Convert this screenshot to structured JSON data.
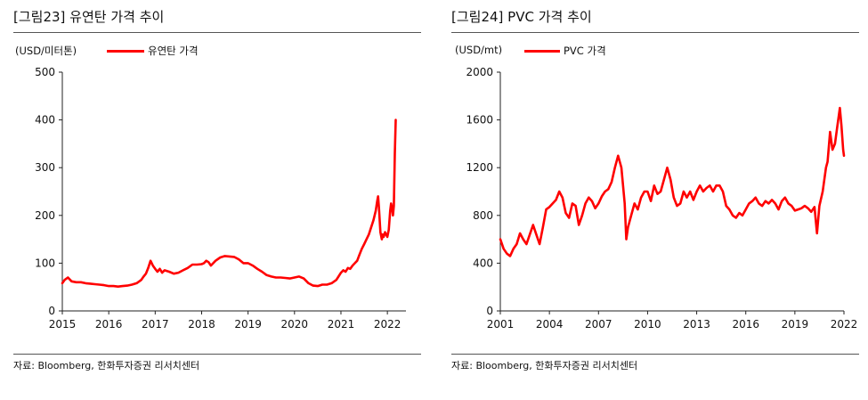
{
  "left": {
    "title": "[그림23]  유연탄 가격 추이",
    "unit": "(USD/미터톤)",
    "legend": "유연탄  가격",
    "source": "자료: Bloomberg, 한화투자증권 리서치센터"
  },
  "right": {
    "title": "[그림24]  PVC 가격 추이",
    "unit": "(USD/mt)",
    "legend": "PVC 가격",
    "source": "자료: Bloomberg, 한화투자증권 리서치센터"
  },
  "chart_data": [
    {
      "type": "line",
      "title": "[그림23]  유연탄 가격 추이",
      "ylabel": "(USD/미터톤)",
      "xlim": [
        2015,
        2022.4
      ],
      "ylim": [
        0,
        500
      ],
      "yticks": [
        "0",
        "100",
        "200",
        "300",
        "400",
        "500"
      ],
      "xticks": [
        "2015",
        "2016",
        "2017",
        "2018",
        "2019",
        "2020",
        "2021",
        "2022"
      ],
      "grid": false,
      "legend_position": "top",
      "color": "#ff0000",
      "series": [
        {
          "name": "유연탄  가격",
          "x": [
            2015.0,
            2015.05,
            2015.12,
            2015.2,
            2015.3,
            2015.4,
            2015.5,
            2015.6,
            2015.7,
            2015.8,
            2015.9,
            2016.0,
            2016.1,
            2016.2,
            2016.3,
            2016.4,
            2016.5,
            2016.6,
            2016.7,
            2016.75,
            2016.8,
            2016.85,
            2016.9,
            2016.95,
            2017.0,
            2017.05,
            2017.1,
            2017.15,
            2017.2,
            2017.3,
            2017.4,
            2017.5,
            2017.6,
            2017.7,
            2017.8,
            2017.9,
            2018.0,
            2018.05,
            2018.1,
            2018.15,
            2018.2,
            2018.3,
            2018.4,
            2018.5,
            2018.6,
            2018.7,
            2018.8,
            2018.9,
            2019.0,
            2019.1,
            2019.2,
            2019.3,
            2019.4,
            2019.5,
            2019.6,
            2019.7,
            2019.8,
            2019.9,
            2020.0,
            2020.1,
            2020.2,
            2020.3,
            2020.4,
            2020.5,
            2020.6,
            2020.7,
            2020.8,
            2020.9,
            2021.0,
            2021.05,
            2021.1,
            2021.15,
            2021.2,
            2021.25,
            2021.3,
            2021.35,
            2021.4,
            2021.45,
            2021.5,
            2021.55,
            2021.6,
            2021.65,
            2021.7,
            2021.75,
            2021.78,
            2021.8,
            2021.82,
            2021.85,
            2021.88,
            2021.9,
            2021.92,
            2021.95,
            2022.0,
            2022.03,
            2022.06,
            2022.08,
            2022.1,
            2022.12,
            2022.14,
            2022.16,
            2022.18
          ],
          "values": [
            58,
            65,
            70,
            62,
            60,
            60,
            58,
            57,
            56,
            55,
            54,
            52,
            52,
            51,
            52,
            53,
            55,
            58,
            65,
            72,
            78,
            90,
            105,
            95,
            88,
            82,
            88,
            80,
            85,
            82,
            78,
            80,
            85,
            90,
            97,
            97,
            98,
            100,
            105,
            102,
            95,
            105,
            112,
            115,
            114,
            113,
            108,
            100,
            100,
            95,
            88,
            82,
            75,
            72,
            70,
            70,
            69,
            68,
            70,
            72,
            68,
            58,
            53,
            52,
            55,
            55,
            58,
            65,
            80,
            85,
            82,
            90,
            88,
            95,
            100,
            105,
            118,
            130,
            140,
            150,
            160,
            175,
            190,
            210,
            230,
            240,
            215,
            165,
            150,
            160,
            155,
            165,
            155,
            170,
            210,
            225,
            215,
            200,
            220,
            330,
            400
          ]
        }
      ]
    },
    {
      "type": "line",
      "title": "[그림24]  PVC 가격 추이",
      "ylabel": "(USD/mt)",
      "xlim": [
        2001,
        2022
      ],
      "ylim": [
        0,
        2000
      ],
      "yticks": [
        "0",
        "400",
        "800",
        "1200",
        "1600",
        "2000"
      ],
      "xticks": [
        "2001",
        "2004",
        "2007",
        "2010",
        "2013",
        "2016",
        "2019",
        "2022"
      ],
      "grid": false,
      "legend_position": "top",
      "color": "#ff0000",
      "series": [
        {
          "name": "PVC 가격",
          "x": [
            2001.0,
            2001.2,
            2001.4,
            2001.6,
            2001.8,
            2002.0,
            2002.2,
            2002.4,
            2002.6,
            2002.8,
            2003.0,
            2003.2,
            2003.4,
            2003.6,
            2003.8,
            2004.0,
            2004.2,
            2004.4,
            2004.6,
            2004.8,
            2005.0,
            2005.2,
            2005.4,
            2005.6,
            2005.8,
            2006.0,
            2006.2,
            2006.4,
            2006.6,
            2006.8,
            2007.0,
            2007.2,
            2007.4,
            2007.6,
            2007.8,
            2008.0,
            2008.2,
            2008.4,
            2008.6,
            2008.7,
            2008.8,
            2009.0,
            2009.2,
            2009.4,
            2009.6,
            2009.8,
            2010.0,
            2010.2,
            2010.4,
            2010.6,
            2010.8,
            2011.0,
            2011.2,
            2011.4,
            2011.6,
            2011.8,
            2012.0,
            2012.2,
            2012.4,
            2012.6,
            2012.8,
            2013.0,
            2013.2,
            2013.4,
            2013.6,
            2013.8,
            2014.0,
            2014.2,
            2014.4,
            2014.6,
            2014.8,
            2015.0,
            2015.2,
            2015.4,
            2015.6,
            2015.8,
            2016.0,
            2016.2,
            2016.4,
            2016.6,
            2016.8,
            2017.0,
            2017.2,
            2017.4,
            2017.6,
            2017.8,
            2018.0,
            2018.2,
            2018.4,
            2018.6,
            2018.8,
            2019.0,
            2019.2,
            2019.4,
            2019.6,
            2019.8,
            2020.0,
            2020.2,
            2020.35,
            2020.5,
            2020.7,
            2020.9,
            2021.0,
            2021.15,
            2021.3,
            2021.45,
            2021.6,
            2021.75,
            2021.85,
            2021.95,
            2022.0
          ],
          "values": [
            600,
            520,
            480,
            460,
            520,
            560,
            650,
            600,
            560,
            640,
            720,
            640,
            560,
            700,
            850,
            870,
            900,
            930,
            1000,
            950,
            820,
            780,
            900,
            880,
            720,
            800,
            900,
            950,
            920,
            860,
            900,
            960,
            1000,
            1020,
            1080,
            1200,
            1300,
            1200,
            900,
            600,
            700,
            800,
            900,
            850,
            950,
            1000,
            1000,
            920,
            1050,
            980,
            1000,
            1100,
            1200,
            1100,
            950,
            880,
            900,
            1000,
            950,
            1000,
            930,
            1000,
            1050,
            1000,
            1030,
            1050,
            1000,
            1050,
            1050,
            1000,
            880,
            850,
            800,
            780,
            820,
            800,
            850,
            900,
            920,
            950,
            900,
            880,
            920,
            900,
            930,
            900,
            850,
            920,
            950,
            900,
            880,
            840,
            850,
            860,
            880,
            860,
            830,
            870,
            650,
            880,
            1000,
            1200,
            1250,
            1500,
            1350,
            1400,
            1550,
            1700,
            1550,
            1350,
            1300
          ]
        }
      ]
    }
  ]
}
